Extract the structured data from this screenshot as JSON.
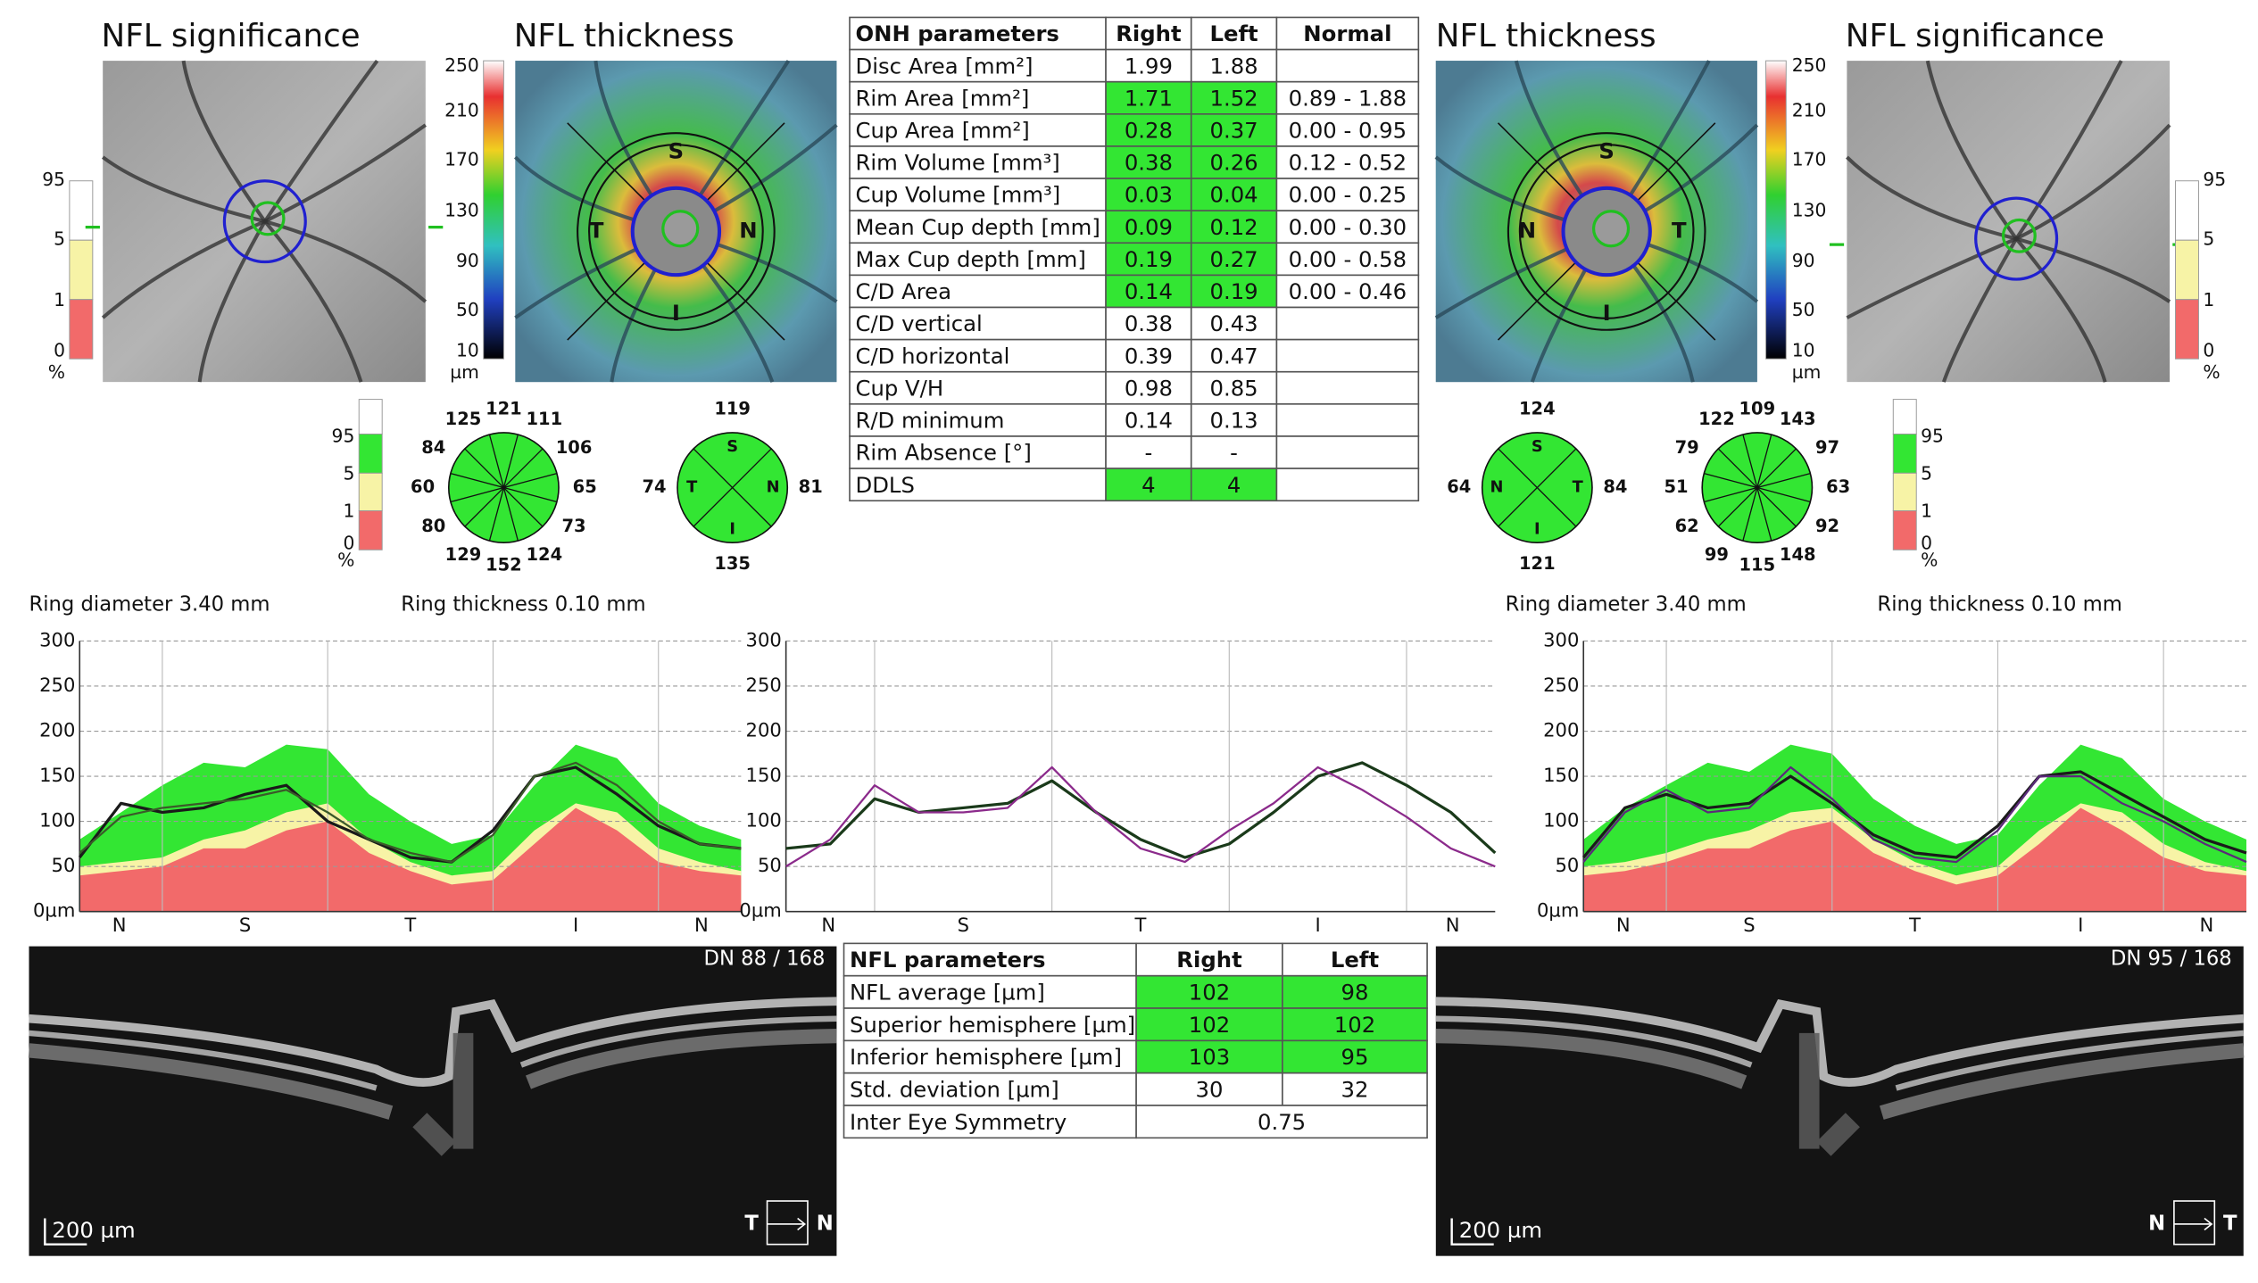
{
  "left_eye": {
    "significance_title": "NFL significance",
    "thickness_title": "NFL thickness",
    "significance_scale": [
      "95",
      "5",
      "1",
      "0",
      "%"
    ],
    "thickness_scale": [
      "250",
      "210",
      "170",
      "130",
      "90",
      "50",
      "10",
      "µm"
    ],
    "map_labels": [
      "S",
      "N",
      "I",
      "T"
    ],
    "sectors": [
      125,
      121,
      111,
      106,
      65,
      73,
      124,
      152,
      129,
      80,
      60,
      84
    ],
    "quadrant_labels": [
      "S",
      "N",
      "I",
      "T"
    ],
    "quadrants": [
      119,
      81,
      135,
      74
    ],
    "ring_diameter": "Ring diameter  3.40 mm",
    "ring_thickness": "Ring thickness  0.10 mm",
    "bscan": {
      "position": "DN  88 / 168",
      "scale": "200 µm",
      "from": "T",
      "to": "N"
    }
  },
  "right_eye": {
    "significance_title": "NFL significance",
    "thickness_title": "NFL thickness",
    "significance_scale": [
      "95",
      "5",
      "1",
      "0",
      "%"
    ],
    "thickness_scale": [
      "250",
      "210",
      "170",
      "130",
      "90",
      "50",
      "10",
      "µm"
    ],
    "map_labels": [
      "S",
      "T",
      "I",
      "N"
    ],
    "sectors": [
      122,
      109,
      143,
      97,
      63,
      92,
      148,
      115,
      99,
      62,
      51,
      79
    ],
    "quadrant_labels": [
      "S",
      "T",
      "I",
      "N"
    ],
    "quadrants": [
      124,
      84,
      121,
      64
    ],
    "ring_diameter": "Ring diameter  3.40 mm",
    "ring_thickness": "Ring thickness  0.10 mm",
    "bscan": {
      "position": "DN  95 / 168",
      "scale": "200 µm",
      "from": "N",
      "to": "T"
    }
  },
  "highlight_color": "#33e633",
  "onh_table": {
    "header": [
      "ONH parameters",
      "Right",
      "Left",
      "Normal"
    ],
    "rows": [
      [
        "Disc Area [mm²]",
        "1.99",
        "1.88",
        null
      ],
      [
        "Rim Area [mm²]",
        "1.71",
        "1.52",
        "0.89 - 1.88"
      ],
      [
        "Cup Area [mm²]",
        "0.28",
        "0.37",
        "0.00 - 0.95"
      ],
      [
        "Rim Volume [mm³]",
        "0.38",
        "0.26",
        "0.12 - 0.52"
      ],
      [
        "Cup Volume [mm³]",
        "0.03",
        "0.04",
        "0.00 - 0.25"
      ],
      [
        "Mean Cup depth [mm]",
        "0.09",
        "0.12",
        "0.00 - 0.30"
      ],
      [
        "Max Cup depth [mm]",
        "0.19",
        "0.27",
        "0.00 - 0.58"
      ],
      [
        "C/D Area",
        "0.14",
        "0.19",
        "0.00 - 0.46"
      ],
      [
        "C/D vertical",
        "0.38",
        "0.43",
        null
      ],
      [
        "C/D horizontal",
        "0.39",
        "0.47",
        null
      ],
      [
        "Cup V/H",
        "0.98",
        "0.85",
        null
      ],
      [
        "R/D minimum",
        "0.14",
        "0.13",
        null
      ],
      [
        "Rim Absence [°]",
        "-",
        "-",
        null
      ],
      [
        "DDLS",
        "4",
        "4",
        null
      ]
    ],
    "green": [
      false,
      true,
      true,
      true,
      true,
      true,
      true,
      true,
      false,
      false,
      false,
      false,
      false,
      true
    ]
  },
  "nfl_table": {
    "header": [
      "NFL parameters",
      "Right",
      "Left"
    ],
    "rows": [
      [
        "NFL average [µm]",
        "102",
        "98"
      ],
      [
        "Superior hemisphere [µm]",
        "102",
        "102"
      ],
      [
        "Inferior hemisphere [µm]",
        "103",
        "95"
      ],
      [
        "Std. deviation [µm]",
        "30",
        "32"
      ]
    ],
    "green": [
      true,
      true,
      true,
      false
    ],
    "symmetry": [
      "Inter Eye Symmetry",
      "0.75"
    ]
  },
  "chart_data": [
    {
      "type": "line",
      "ylim": [
        0,
        300
      ],
      "yticks": [
        {
          "value": 0,
          "label": "0µm"
        },
        50,
        100,
        150,
        200,
        250,
        300
      ],
      "xtick_labels": [
        "N",
        "S",
        "T",
        "I",
        "N"
      ],
      "grid": true,
      "band_colors": [
        "#f26a6a",
        "#f7f3a6",
        "#33e633"
      ],
      "bands": {
        "p1": [
          40,
          45,
          50,
          70,
          70,
          90,
          100,
          65,
          45,
          30,
          35,
          75,
          115,
          90,
          55,
          45,
          40
        ],
        "p5": [
          50,
          55,
          60,
          80,
          90,
          110,
          120,
          80,
          55,
          40,
          45,
          90,
          120,
          110,
          70,
          55,
          45
        ],
        "p95": [
          80,
          110,
          140,
          165,
          160,
          185,
          180,
          130,
          100,
          75,
          85,
          140,
          185,
          170,
          120,
          95,
          80
        ]
      },
      "series": [
        {
          "color": "#1a1a1a",
          "values": [
            60,
            120,
            110,
            115,
            130,
            140,
            100,
            80,
            60,
            55,
            90,
            150,
            160,
            130,
            95,
            75,
            70
          ]
        },
        {
          "color": "#3b5a2a",
          "values": [
            65,
            105,
            115,
            120,
            125,
            135,
            110,
            80,
            65,
            55,
            85,
            150,
            165,
            140,
            100,
            75,
            70
          ]
        }
      ]
    },
    {
      "type": "line",
      "ylim": [
        0,
        300
      ],
      "yticks": [
        {
          "value": 0,
          "label": "0µm"
        },
        50,
        100,
        150,
        200,
        250,
        300
      ],
      "xtick_labels": [
        "N",
        "S",
        "T",
        "I",
        "N"
      ],
      "grid": true,
      "series": [
        {
          "color": "#1a3a1a",
          "values": [
            70,
            75,
            125,
            110,
            115,
            120,
            145,
            110,
            80,
            60,
            75,
            110,
            150,
            165,
            140,
            110,
            65
          ]
        },
        {
          "color": "#8b2a8b",
          "values": [
            50,
            80,
            140,
            110,
            110,
            115,
            160,
            110,
            70,
            55,
            90,
            120,
            160,
            135,
            105,
            70,
            50
          ]
        }
      ]
    },
    {
      "type": "line",
      "ylim": [
        0,
        300
      ],
      "yticks": [
        {
          "value": 0,
          "label": "0µm"
        },
        50,
        100,
        150,
        200,
        250,
        300
      ],
      "xtick_labels": [
        "N",
        "S",
        "T",
        "I",
        "N"
      ],
      "grid": true,
      "band_colors": [
        "#f26a6a",
        "#f7f3a6",
        "#33e633"
      ],
      "bands": {
        "p1": [
          40,
          45,
          55,
          70,
          70,
          90,
          100,
          65,
          45,
          30,
          40,
          75,
          115,
          90,
          60,
          45,
          40
        ],
        "p5": [
          50,
          55,
          65,
          80,
          90,
          110,
          115,
          80,
          55,
          40,
          50,
          90,
          120,
          110,
          75,
          55,
          45
        ],
        "p95": [
          80,
          115,
          140,
          165,
          155,
          185,
          175,
          125,
          95,
          75,
          85,
          140,
          185,
          170,
          125,
          100,
          80
        ]
      },
      "series": [
        {
          "color": "#1a1a1a",
          "values": [
            60,
            115,
            130,
            115,
            120,
            150,
            120,
            85,
            65,
            60,
            95,
            150,
            155,
            130,
            105,
            80,
            65
          ]
        },
        {
          "color": "#5b2a7a",
          "values": [
            55,
            110,
            135,
            110,
            115,
            160,
            125,
            80,
            60,
            55,
            90,
            150,
            150,
            120,
            100,
            75,
            55
          ]
        }
      ]
    }
  ]
}
